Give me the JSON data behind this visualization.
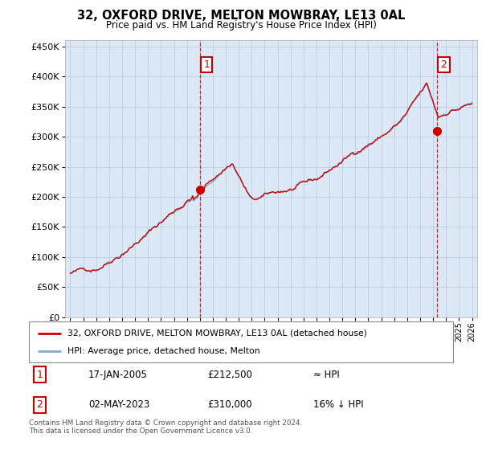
{
  "title": "32, OXFORD DRIVE, MELTON MOWBRAY, LE13 0AL",
  "subtitle": "Price paid vs. HM Land Registry's House Price Index (HPI)",
  "hpi_color": "#7bafd4",
  "price_color": "#cc0000",
  "dashed_color": "#cc0000",
  "plot_bg_color": "#dce8f5",
  "background_color": "#ffffff",
  "grid_color": "#b8cfe0",
  "ylim": [
    0,
    460000
  ],
  "yticks": [
    0,
    50000,
    100000,
    150000,
    200000,
    250000,
    300000,
    350000,
    400000,
    450000
  ],
  "ytick_labels": [
    "£0",
    "£50K",
    "£100K",
    "£150K",
    "£200K",
    "£250K",
    "£300K",
    "£350K",
    "£400K",
    "£450K"
  ],
  "sale1_price": 212500,
  "sale1_x": 2005.04,
  "sale2_price": 310000,
  "sale2_x": 2023.33,
  "legend_line1": "32, OXFORD DRIVE, MELTON MOWBRAY, LE13 0AL (detached house)",
  "legend_line2": "HPI: Average price, detached house, Melton",
  "footer1": "Contains HM Land Registry data © Crown copyright and database right 2024.",
  "footer2": "This data is licensed under the Open Government Licence v3.0.",
  "table_row1": [
    "1",
    "17-JAN-2005",
    "£212,500",
    "≈ HPI"
  ],
  "table_row2": [
    "2",
    "02-MAY-2023",
    "£310,000",
    "16% ↓ HPI"
  ]
}
